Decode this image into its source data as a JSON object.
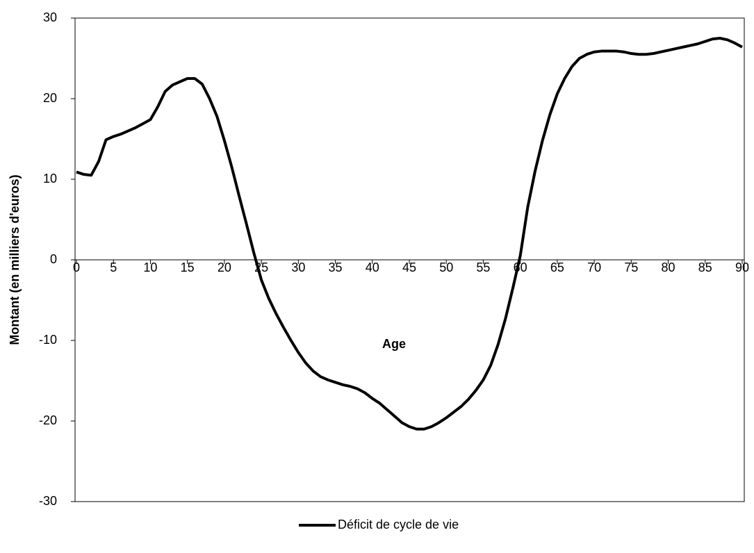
{
  "chart_data": {
    "type": "line",
    "x_label": "Age",
    "y_label": "Montant (en milliers d'euros)",
    "x": [
      0,
      1,
      2,
      3,
      4,
      5,
      6,
      7,
      8,
      9,
      10,
      11,
      12,
      13,
      14,
      15,
      16,
      17,
      18,
      19,
      20,
      21,
      22,
      23,
      24,
      25,
      26,
      27,
      28,
      29,
      30,
      31,
      32,
      33,
      34,
      35,
      36,
      37,
      38,
      39,
      40,
      41,
      42,
      43,
      44,
      45,
      46,
      47,
      48,
      49,
      50,
      51,
      52,
      53,
      54,
      55,
      56,
      57,
      58,
      59,
      60,
      61,
      62,
      63,
      64,
      65,
      66,
      67,
      68,
      69,
      70,
      71,
      72,
      73,
      74,
      75,
      76,
      77,
      78,
      79,
      80,
      81,
      82,
      83,
      84,
      85,
      86,
      87,
      88,
      89,
      90
    ],
    "series": [
      {
        "name": "Déficit de cycle de vie",
        "color": "#000000",
        "values": [
          10.9,
          10.6,
          10.5,
          12.2,
          14.9,
          15.3,
          15.6,
          16.0,
          16.4,
          16.9,
          17.4,
          19.0,
          20.9,
          21.7,
          22.1,
          22.5,
          22.5,
          21.8,
          20.0,
          17.8,
          14.8,
          11.5,
          7.9,
          4.4,
          0.8,
          -2.5,
          -4.8,
          -6.7,
          -8.4,
          -10.0,
          -11.5,
          -12.8,
          -13.8,
          -14.5,
          -14.9,
          -15.2,
          -15.5,
          -15.7,
          -16.0,
          -16.5,
          -17.2,
          -17.8,
          -18.6,
          -19.4,
          -20.2,
          -20.7,
          -21.0,
          -21.0,
          -20.7,
          -20.2,
          -19.6,
          -18.9,
          -18.2,
          -17.3,
          -16.2,
          -14.9,
          -13.1,
          -10.5,
          -7.3,
          -3.5,
          0.5,
          6.5,
          11.0,
          14.8,
          18.0,
          20.6,
          22.5,
          24.0,
          25.0,
          25.5,
          25.8,
          25.9,
          25.9,
          25.9,
          25.8,
          25.6,
          25.5,
          25.5,
          25.6,
          25.8,
          26.0,
          26.2,
          26.4,
          26.6,
          26.8,
          27.1,
          27.4,
          27.5,
          27.3,
          26.9,
          26.4
        ]
      }
    ],
    "xlim": [
      0,
      90
    ],
    "xticks": [
      0,
      5,
      10,
      15,
      20,
      25,
      30,
      35,
      40,
      45,
      50,
      55,
      60,
      65,
      70,
      75,
      80,
      85,
      90
    ],
    "ylim": [
      -30,
      30
    ],
    "yticks": [
      -30,
      -20,
      -10,
      0,
      10,
      20,
      30
    ],
    "legend": "bottom"
  }
}
